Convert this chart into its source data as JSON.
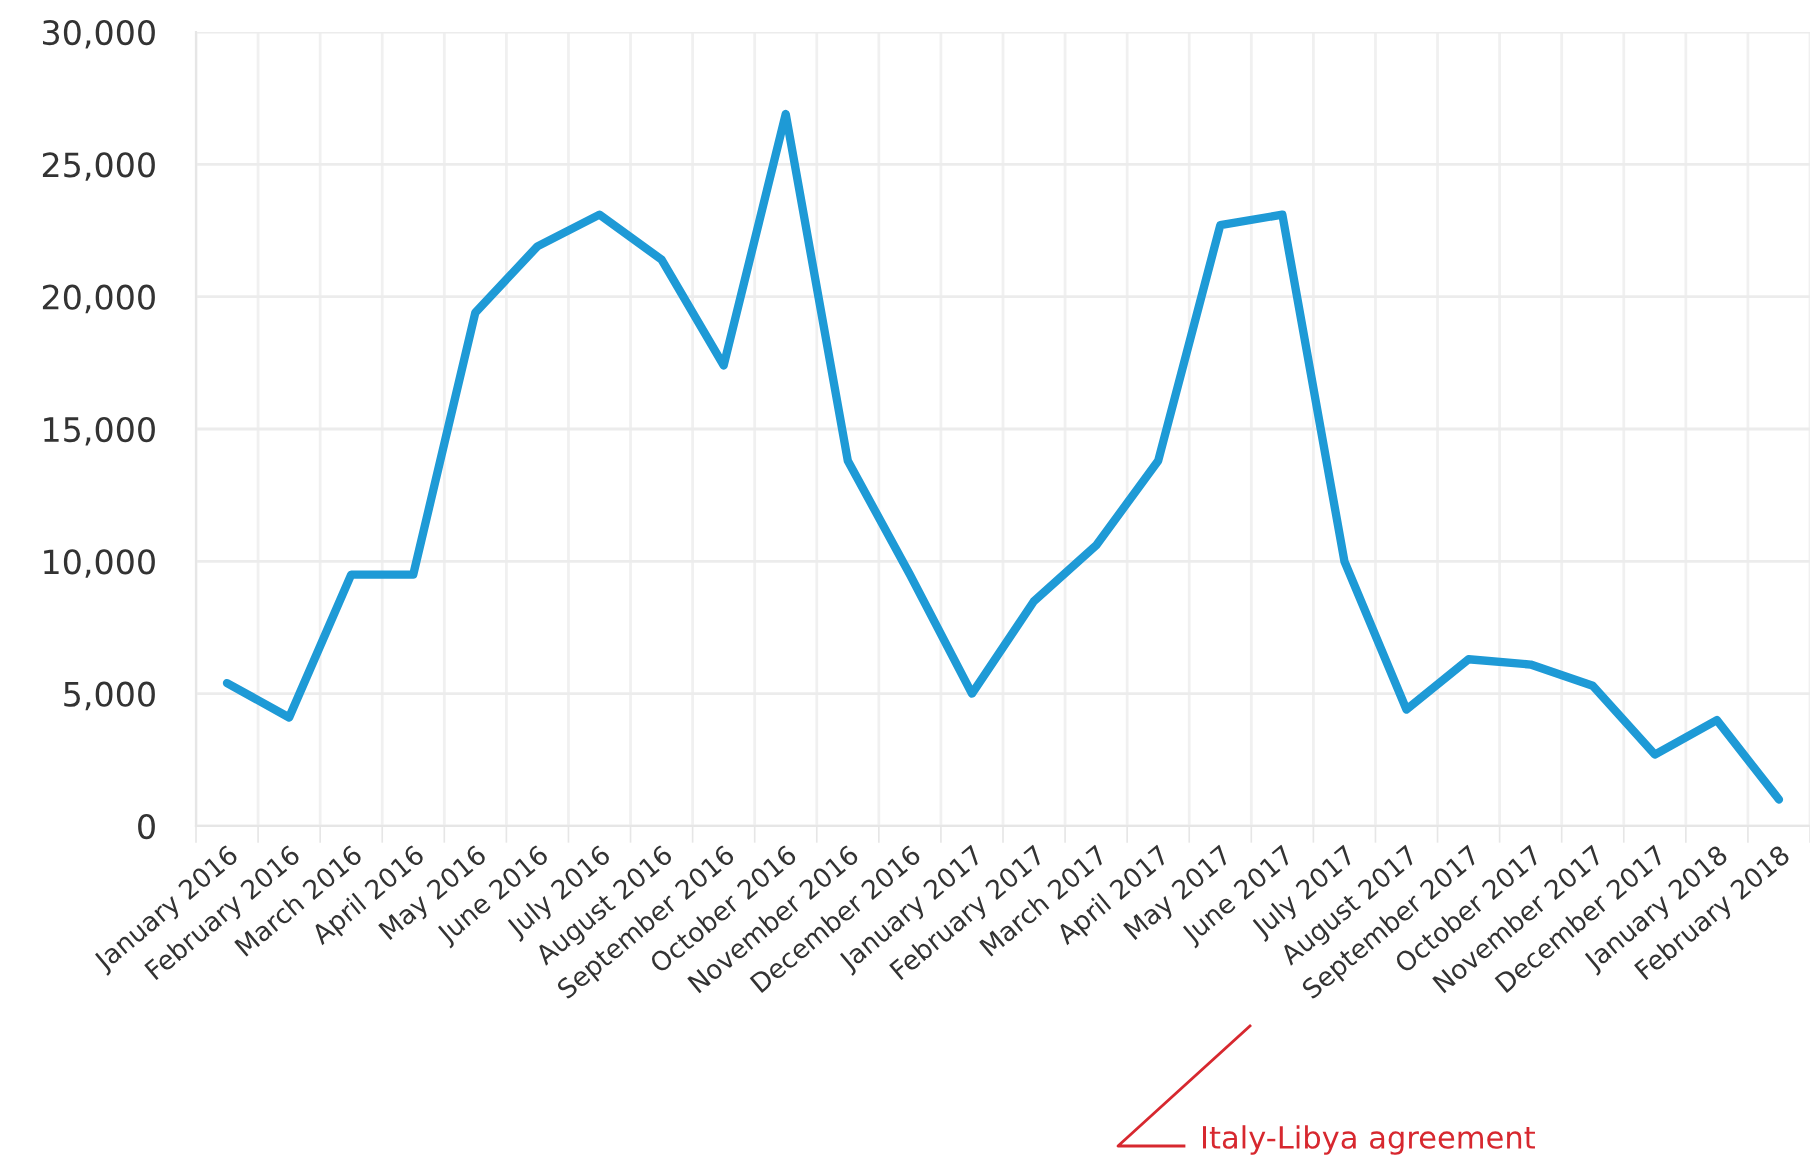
{
  "chart_data": {
    "type": "line",
    "categories": [
      "January 2016",
      "February 2016",
      "March 2016",
      "April 2016",
      "May 2016",
      "June 2016",
      "July 2016",
      "August 2016",
      "September 2016",
      "October 2016",
      "November 2016",
      "December 2016",
      "January 2017",
      "February 2017",
      "March 2017",
      "April 2017",
      "May 2017",
      "June 2017",
      "July 2017",
      "August 2017",
      "September 2017",
      "October 2017",
      "November 2017",
      "December 2017",
      "January 2018",
      "February 2018"
    ],
    "series": [
      {
        "color": "#1e9ad6",
        "values": [
          5400,
          4100,
          9500,
          9500,
          19400,
          21900,
          23100,
          21400,
          17400,
          26900,
          13800,
          9500,
          5000,
          8500,
          10600,
          13800,
          22700,
          23100,
          10000,
          4400,
          6300,
          6100,
          5300,
          2700,
          4000,
          1000
        ]
      }
    ],
    "ylim": [
      0,
      30000
    ],
    "yticks": [
      {
        "value": 0,
        "label": "0"
      },
      {
        "value": 5000,
        "label": "5,000"
      },
      {
        "value": 10000,
        "label": "10,000"
      },
      {
        "value": 15000,
        "label": "15,000"
      },
      {
        "value": 20000,
        "label": "20,000"
      },
      {
        "value": 25000,
        "label": "25,000"
      },
      {
        "value": 30000,
        "label": "30,000"
      }
    ],
    "grid": true,
    "legend": false,
    "marker": "none",
    "line_style": "solid",
    "annotations": [
      "Italy-Libya agreement"
    ]
  }
}
